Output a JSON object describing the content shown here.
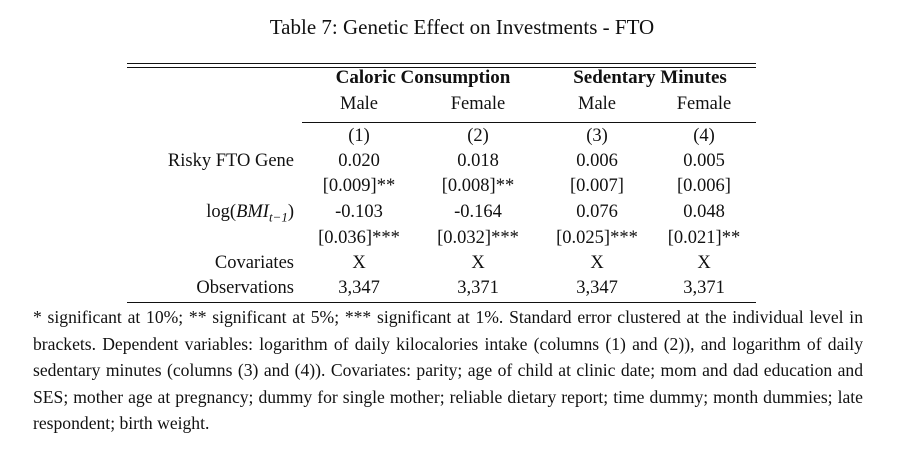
{
  "caption": "Table 7: Genetic Effect on Investments - FTO",
  "groups": [
    "Caloric Consumption",
    "Sedentary Minutes"
  ],
  "subheads": [
    "Male",
    "Female",
    "Male",
    "Female"
  ],
  "colnums": [
    "(1)",
    "(2)",
    "(3)",
    "(4)"
  ],
  "rows": {
    "fto": {
      "label": "Risky FTO Gene",
      "coef": [
        "0.020",
        "0.018",
        "0.006",
        "0.005"
      ],
      "se": [
        "[0.009]**",
        "[0.008]**",
        "[0.007]",
        "[0.006]"
      ]
    },
    "bmi": {
      "label_prefix": "log(",
      "label_math": "BMI",
      "label_sub": "t−1",
      "label_suffix": ")",
      "coef": [
        "-0.103",
        "-0.164",
        "0.076",
        "0.048"
      ],
      "se": [
        "[0.036]***",
        "[0.032]***",
        "[0.025]***",
        "[0.021]**"
      ]
    },
    "cov": {
      "label": "Covariates",
      "vals": [
        "X",
        "X",
        "X",
        "X"
      ]
    },
    "obs": {
      "label": "Observations",
      "vals": [
        "3,347",
        "3,371",
        "3,347",
        "3,371"
      ]
    }
  },
  "notes": "* significant at 10%; ** significant at 5%; *** significant at 1%. Standard error clustered at the individual level in brackets. Dependent variables: logarithm of daily kilocalories intake (columns (1) and (2)), and logarithm of daily sedentary minutes (columns (3) and (4)). Covariates: parity; age of child at clinic date; mom and dad education and SES; mother age at pregnancy; dummy for single mother; reliable dietary report; time dummy; month dummies; late respondent; birth weight."
}
